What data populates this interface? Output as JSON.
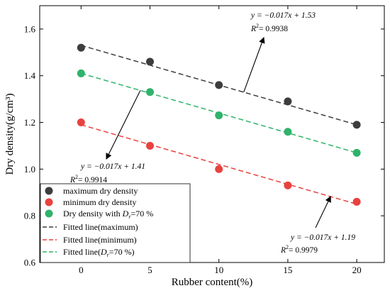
{
  "chart_data": {
    "type": "scatter",
    "xlabel": "Rubber content(%)",
    "ylabel": "Dry density(g/cm³)",
    "xlim": [
      -3,
      22
    ],
    "ylim": [
      0.6,
      1.7
    ],
    "x_ticks": [
      0,
      5,
      10,
      15,
      20
    ],
    "x_tick_labels": [
      "0",
      "5",
      "10",
      "15",
      "20"
    ],
    "y_ticks": [
      0.6,
      0.8,
      1.0,
      1.2,
      1.4,
      1.6
    ],
    "y_tick_labels": [
      "0.6",
      "0.8",
      "1.0",
      "1.2",
      "1.4",
      "1.6"
    ],
    "grid": false,
    "legend_position": "bottom-left",
    "x": [
      0,
      5,
      10,
      15,
      20
    ],
    "series": [
      {
        "name": "maximum dry density",
        "values": [
          1.52,
          1.46,
          1.36,
          1.29,
          1.19
        ],
        "color": "#3d3d3d"
      },
      {
        "name": "minimum dry density",
        "values": [
          1.2,
          1.1,
          1.0,
          0.93,
          0.86
        ],
        "color": "#e8423f"
      },
      {
        "name": "Dry density with Dr=70 %",
        "values": [
          1.41,
          1.33,
          1.23,
          1.16,
          1.07
        ],
        "color": "#2fb36b"
      }
    ],
    "fits": [
      {
        "name": "Fitted line(maximum)",
        "slope": -0.017,
        "intercept": 1.53,
        "color": "#3d3d3d",
        "eq": "y = −0.017x + 1.53",
        "r2_label": "R",
        "r2_value": "= 0.9938"
      },
      {
        "name": "Fitted line(minimum)",
        "slope": -0.017,
        "intercept": 1.19,
        "color": "#e8423f",
        "eq": "y = −0.017x + 1.19",
        "r2_label": "R",
        "r2_value": "= 0.9979"
      },
      {
        "name": "Fitted line(Dr=70 %)",
        "slope": -0.017,
        "intercept": 1.41,
        "color": "#2fb36b",
        "eq": "y = −0.017x + 1.41",
        "r2_label": "R",
        "r2_value": "= 0.9914"
      }
    ]
  }
}
